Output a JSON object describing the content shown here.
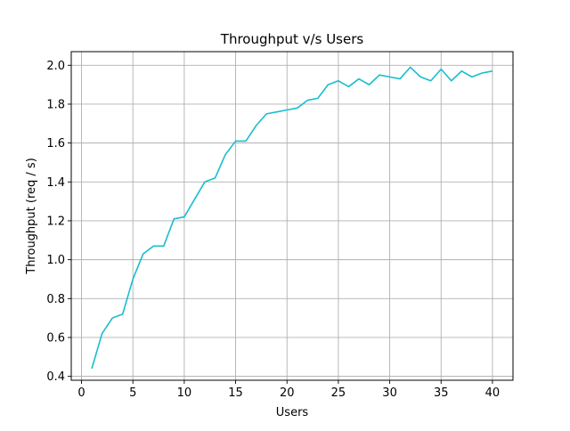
{
  "chart_data": {
    "type": "line",
    "title": "Throughput v/s Users",
    "xlabel": "Users",
    "ylabel": "Throughput (req / s)",
    "xlim": [
      -1,
      42
    ],
    "ylim": [
      0.38,
      2.07
    ],
    "x_ticks": [
      0,
      5,
      10,
      15,
      20,
      25,
      30,
      35,
      40
    ],
    "y_ticks": [
      0.4,
      0.6,
      0.8,
      1.0,
      1.2,
      1.4,
      1.6,
      1.8,
      2.0
    ],
    "x_tick_labels": [
      "0",
      "5",
      "10",
      "15",
      "20",
      "25",
      "30",
      "35",
      "40"
    ],
    "y_tick_labels": [
      "0.4",
      "0.6",
      "0.8",
      "1.0",
      "1.2",
      "1.4",
      "1.6",
      "1.8",
      "2.0"
    ],
    "grid": true,
    "series": [
      {
        "color": "#17becf",
        "x": [
          1,
          2,
          3,
          4,
          5,
          6,
          7,
          8,
          9,
          10,
          11,
          12,
          13,
          14,
          15,
          16,
          17,
          18,
          19,
          20,
          21,
          22,
          23,
          24,
          25,
          26,
          27,
          28,
          29,
          30,
          31,
          32,
          33,
          34,
          35,
          36,
          37,
          38,
          39,
          40
        ],
        "values": [
          0.44,
          0.62,
          0.7,
          0.72,
          0.9,
          1.03,
          1.07,
          1.07,
          1.21,
          1.22,
          1.31,
          1.4,
          1.42,
          1.54,
          1.61,
          1.61,
          1.69,
          1.75,
          1.76,
          1.77,
          1.78,
          1.82,
          1.83,
          1.9,
          1.92,
          1.89,
          1.93,
          1.9,
          1.95,
          1.94,
          1.93,
          1.99,
          1.94,
          1.92,
          1.98,
          1.92,
          1.97,
          1.94,
          1.96,
          1.97
        ]
      }
    ]
  }
}
